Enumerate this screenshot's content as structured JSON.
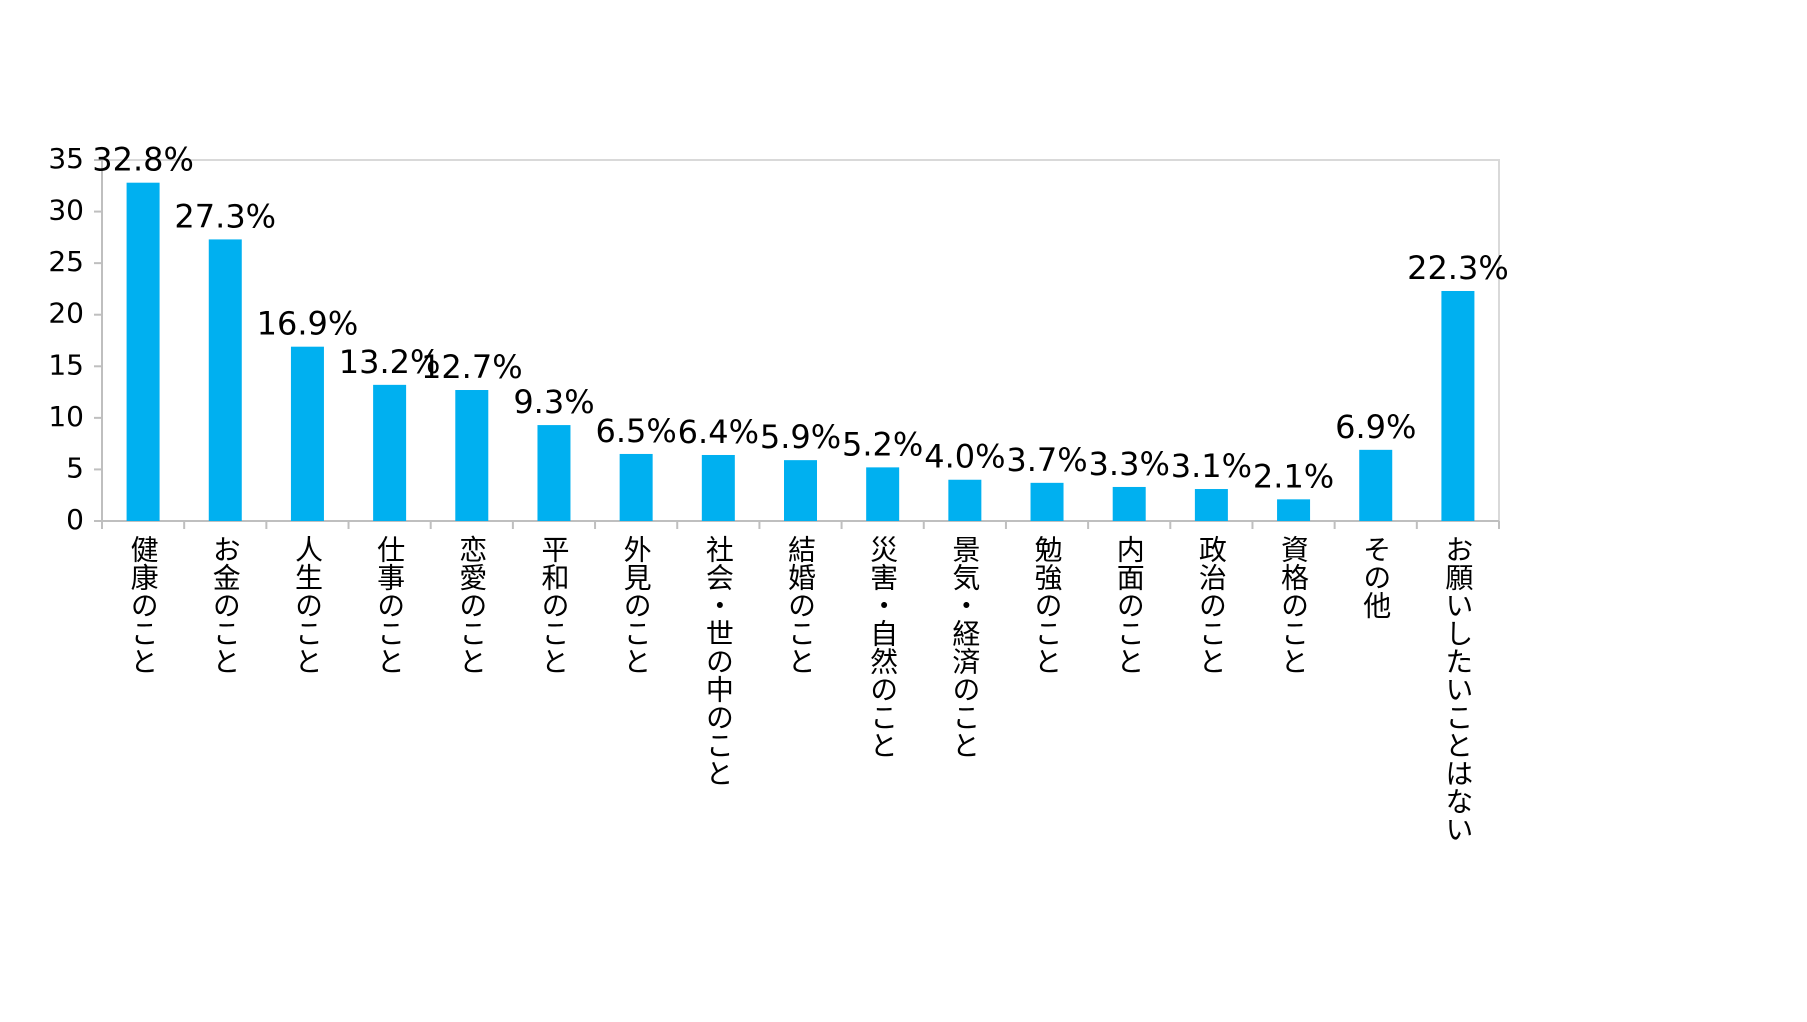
{
  "chart_data": {
    "type": "bar",
    "categories": [
      "健康のこと",
      "お金のこと",
      "人生のこと",
      "仕事のこと",
      "恋愛のこと",
      "平和のこと",
      "外見のこと",
      "社会・世の中のこと",
      "結婚のこと",
      "災害・自然のこと",
      "景気・経済のこと",
      "勉強のこと",
      "内面のこと",
      "政治のこと",
      "資格のこと",
      "その他",
      "お願いしたいことはない"
    ],
    "values": [
      32.8,
      27.3,
      16.9,
      13.2,
      12.7,
      9.3,
      6.5,
      6.4,
      5.9,
      5.2,
      4.0,
      3.7,
      3.3,
      3.1,
      2.1,
      6.9,
      22.3
    ],
    "value_labels": [
      "32.8%",
      "27.3%",
      "16.9%",
      "13.2%",
      "12.7%",
      "9.3%",
      "6.5%",
      "6.4%",
      "5.9%",
      "5.2%",
      "4.0%",
      "3.7%",
      "3.3%",
      "3.1%",
      "2.1%",
      "6.9%",
      "22.3%"
    ],
    "color": "#00b0f0",
    "ylim": [
      0,
      35
    ],
    "yticks": [
      0,
      5,
      10,
      15,
      20,
      25,
      30,
      35
    ],
    "grid": false
  }
}
